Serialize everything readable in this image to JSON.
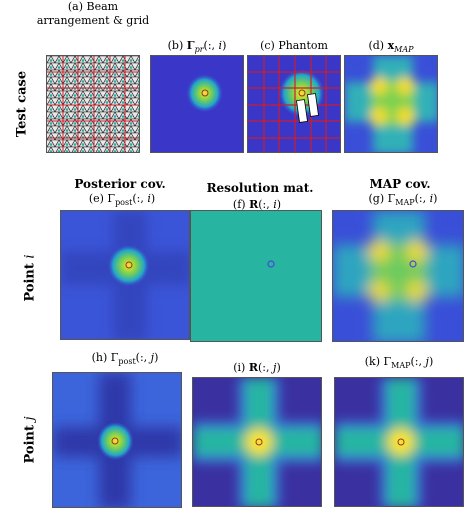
{
  "rows": {
    "test": "Test case",
    "point_i": "Point i",
    "point_j": "Point j"
  },
  "columns": {
    "posterior": "Posterior cov.",
    "resolution": "Resolution mat.",
    "map": "MAP cov."
  },
  "captions": {
    "a_line1": "(a) Beam",
    "a_line2": "arrangement & grid",
    "b": "(b) Γpr(:, i)",
    "c": "(c) Phantom",
    "d": "(d) xMAP",
    "e": "(e) Γpost(:, i)",
    "f": "(f) R(:, i)",
    "g": "(g) ΓMAP(:, i)",
    "h": "(h) Γpost(:, j)",
    "i": "(i) R(:, j)",
    "k": "(k) ΓMAP(:, j)"
  },
  "colors": {
    "background_deep": "#3b2fa0",
    "background_mid": "#3b60d6",
    "resolution_flat": "#27b5a2",
    "grid_red": "#cc1f2e",
    "hot": "#f9e51e"
  }
}
